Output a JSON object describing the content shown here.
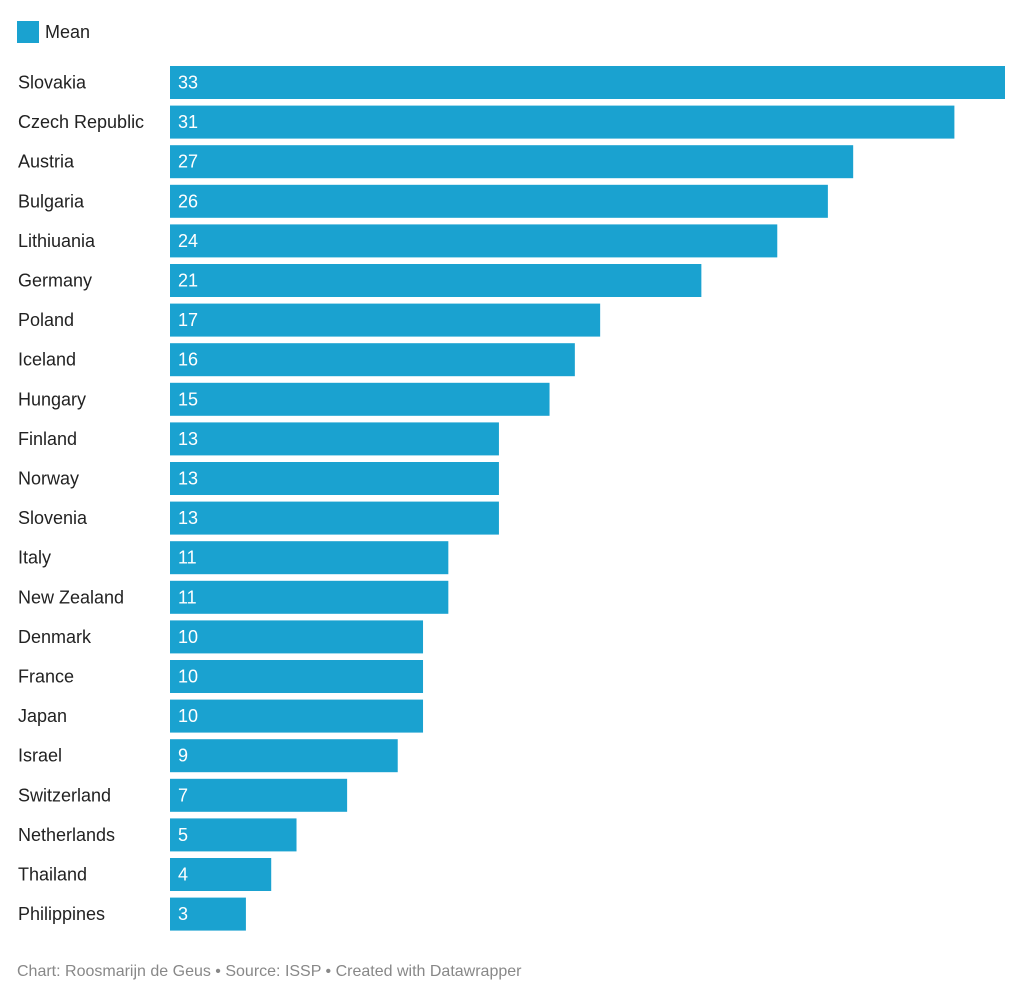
{
  "legend": {
    "label": "Mean",
    "color": "#1aa2d0"
  },
  "footer": {
    "text": "Chart: Roosmarijn de Geus • Source: ISSP • Created with Datawrapper"
  },
  "chart_data": {
    "type": "bar",
    "orientation": "horizontal",
    "title": "",
    "xlabel": "",
    "ylabel": "",
    "grid": false,
    "legend_position": "top-left",
    "bar_color": "#1aa2d0",
    "label_color": "#ffffff",
    "xlim": [
      0,
      33
    ],
    "categories": [
      "Slovakia",
      "Czech Republic",
      "Austria",
      "Bulgaria",
      "Lithiuania",
      "Germany",
      "Poland",
      "Iceland",
      "Hungary",
      "Finland",
      "Norway",
      "Slovenia",
      "Italy",
      "New Zealand",
      "Denmark",
      "France",
      "Japan",
      "Israel",
      "Switzerland",
      "Netherlands",
      "Thailand",
      "Philippines"
    ],
    "series": [
      {
        "name": "Mean",
        "values": [
          33,
          31,
          27,
          26,
          24,
          21,
          17,
          16,
          15,
          13,
          13,
          13,
          11,
          11,
          10,
          10,
          10,
          9,
          7,
          5,
          4,
          3
        ]
      }
    ]
  }
}
